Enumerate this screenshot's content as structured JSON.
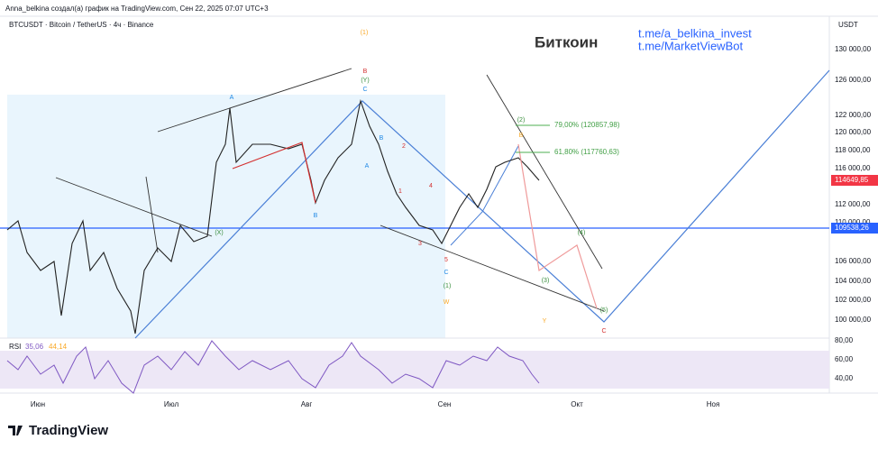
{
  "header": {
    "author_line": "Anna_belkina создал(а) график на TradingView.com, Сен 22, 2025 07:07 UTC+3",
    "symbol": "BTCUSDT · Bitcoin / TetherUS · 4ч · Binance",
    "title": "Биткоин",
    "links": [
      "t.me/a_belkina_invest",
      "t.me/MarketViewBot"
    ]
  },
  "price_axis": {
    "currency": "USDT",
    "labels": [
      "130 000,00",
      "126 000,00",
      "122 000,00",
      "120 000,00",
      "118 000,00",
      "116 000,00",
      "112 000,00",
      "110 000,00",
      "106 000,00",
      "104 000,00",
      "102 000,00",
      "100 000,00"
    ],
    "last_price": "114649,85",
    "line_price": "109538,26"
  },
  "rsi": {
    "label": "RSI",
    "values": [
      "35,06",
      "44,14"
    ],
    "axis": [
      "80,00",
      "60,00",
      "40,00"
    ]
  },
  "time_axis": [
    "Июн",
    "Июл",
    "Авг",
    "Сен",
    "Окт",
    "Ноя"
  ],
  "fib": [
    "79,00% (120857,98)",
    "61,80% (117760,63)"
  ],
  "waves": [
    "(1)",
    "B",
    "(Y)",
    "C",
    "A",
    "B",
    "A",
    "2",
    "B",
    "1",
    "4",
    "3",
    "5",
    "C",
    "(1)",
    "W",
    "(X)",
    "(2)",
    "B",
    "(4)",
    "(3)",
    "(5)",
    "Y",
    "C"
  ],
  "logo": "TradingView"
}
